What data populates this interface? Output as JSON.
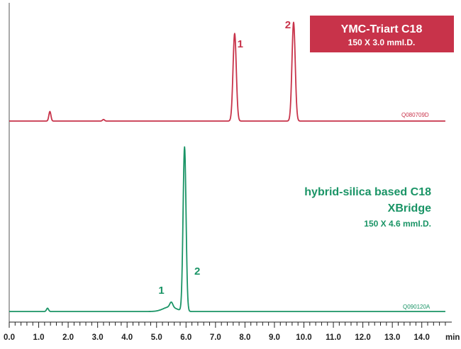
{
  "chart_data": {
    "type": "line",
    "x_axis": {
      "unit_label": "min",
      "xlim": [
        0,
        14.8
      ],
      "major_ticks": [
        0.0,
        1.0,
        2.0,
        3.0,
        4.0,
        5.0,
        6.0,
        7.0,
        8.0,
        9.0,
        10.0,
        11.0,
        12.0,
        13.0,
        14.0
      ],
      "tick_labels": [
        "0.0",
        "1.0",
        "2.0",
        "3.0",
        "4.0",
        "5.0",
        "6.0",
        "7.0",
        "8.0",
        "9.0",
        "10.0",
        "11.0",
        "12.0",
        "13.0",
        "14.0"
      ],
      "minor_tick_step": 0.2
    },
    "grid": false,
    "series": [
      {
        "name": "YMC-Triart C18",
        "subtitle": "150 X 3.0 mmI.D.",
        "color": "#c8334a",
        "code": "Q080709D",
        "legend_style": "boxed",
        "relative_heights": true,
        "baseline_end": 14.8,
        "peaks": [
          {
            "label": "1",
            "rt": 7.65,
            "height": 0.55
          },
          {
            "label": "2",
            "rt": 9.65,
            "height": 0.62
          }
        ],
        "minor_peaks": [
          {
            "rt": 1.38,
            "height": 0.06
          },
          {
            "rt": 3.2,
            "height": 0.01
          }
        ]
      },
      {
        "name": "hybrid-silica based C18",
        "name_line2": "XBridge",
        "subtitle": "150 X 4.6 mmI.D.",
        "color": "#1a9466",
        "code": "Q090120A",
        "legend_style": "text",
        "relative_heights": true,
        "baseline_end": 14.8,
        "peaks": [
          {
            "label": "1",
            "rt": 5.5,
            "height": 0.03
          },
          {
            "label": "2",
            "rt": 5.95,
            "height": 1.0
          }
        ],
        "minor_peaks": [
          {
            "rt": 1.3,
            "height": 0.02
          }
        ]
      }
    ]
  }
}
